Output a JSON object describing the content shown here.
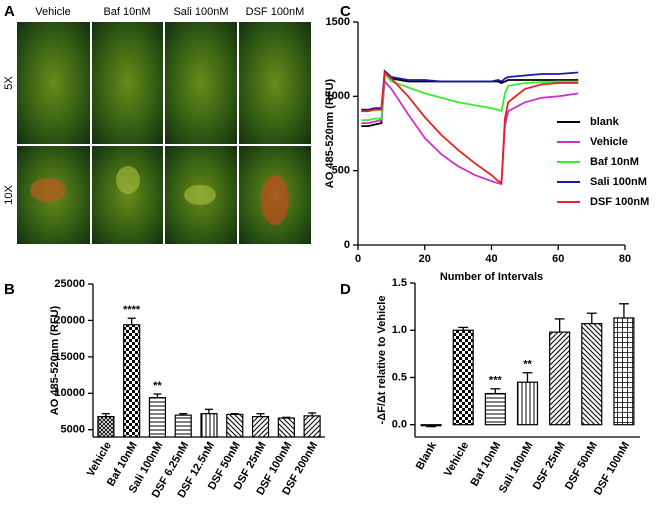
{
  "image_panel": {
    "label": "A",
    "columns": [
      "Vehicle",
      "Baf 10nM",
      "Sali 100nM",
      "DSF 100nM"
    ],
    "rows": [
      "5X",
      "10X"
    ]
  },
  "chart_data": [
    {
      "type": "bar",
      "label": "B",
      "ylabel": "AO 485-520nm (RFU)",
      "categories": [
        "Vehicle",
        "Baf 10nM",
        "Sali 100nM",
        "DSF 6.25nM",
        "DSF 12.5nM",
        "DSF 50nM",
        "DSF 25nM",
        "DSF 100nM",
        "DSF 200nM"
      ],
      "values": [
        6800,
        19400,
        9400,
        7000,
        7200,
        7100,
        6800,
        6600,
        6900
      ],
      "errors": [
        400,
        900,
        500,
        200,
        600,
        100,
        400,
        100,
        400
      ],
      "value_annotations": [
        null,
        "****",
        "**",
        null,
        null,
        null,
        null,
        null,
        null
      ],
      "patterns": [
        "crosshatch",
        "checker",
        "hlines",
        "hlines",
        "vlines",
        "bdiag",
        "diag",
        "bdiag",
        "diag"
      ],
      "color": "#000000",
      "ylim": [
        4000,
        25000
      ],
      "yticks": [
        5000,
        10000,
        15000,
        20000,
        25000
      ]
    },
    {
      "type": "line",
      "label": "C",
      "ylabel": "AO 485-520nm (RFU)",
      "xlabel": "Number of Intervals",
      "x": [
        1,
        3,
        5,
        7,
        8,
        10,
        15,
        20,
        25,
        30,
        35,
        40,
        42,
        43,
        44,
        45,
        50,
        55,
        60,
        66
      ],
      "series": [
        {
          "name": "blank",
          "color": "#000000",
          "values": [
            800,
            800,
            810,
            820,
            1150,
            1120,
            1100,
            1100,
            1100,
            1100,
            1100,
            1100,
            1100,
            1090,
            1100,
            1110,
            1110,
            1110,
            1110,
            1110
          ]
        },
        {
          "name": "Vehicle",
          "color": "#cc33cc",
          "values": [
            820,
            820,
            830,
            840,
            1100,
            1050,
            880,
            720,
            610,
            530,
            470,
            430,
            415,
            410,
            800,
            900,
            960,
            990,
            1000,
            1020
          ]
        },
        {
          "name": "Baf 10nM",
          "color": "#33ee33",
          "values": [
            840,
            840,
            850,
            850,
            1150,
            1100,
            1060,
            1020,
            990,
            960,
            940,
            920,
            910,
            900,
            1020,
            1070,
            1090,
            1095,
            1100,
            1100
          ]
        },
        {
          "name": "Sali 100nM",
          "color": "#1a1aa6",
          "values": [
            910,
            910,
            920,
            920,
            1170,
            1130,
            1110,
            1110,
            1100,
            1100,
            1100,
            1100,
            1110,
            1100,
            1120,
            1130,
            1140,
            1150,
            1150,
            1160
          ]
        },
        {
          "name": "DSF 100nM",
          "color": "#e62222",
          "values": [
            900,
            900,
            910,
            910,
            1160,
            1120,
            1000,
            860,
            740,
            640,
            550,
            470,
            430,
            420,
            850,
            960,
            1050,
            1080,
            1090,
            1090
          ]
        }
      ],
      "xlim": [
        0,
        80
      ],
      "xticks": [
        0,
        20,
        40,
        60,
        80
      ],
      "ylim": [
        0,
        1500
      ],
      "yticks": [
        0,
        500,
        1000,
        1500
      ],
      "legend": "right"
    },
    {
      "type": "bar",
      "label": "D",
      "ylabel": "-ΔF/Δt relative to Vehicle",
      "categories": [
        "Blank",
        "Vehicle",
        "Baf 10nM",
        "Sali 100nM",
        "DSF 25nM",
        "DSF 50nM",
        "DSF 100nM"
      ],
      "values": [
        -0.01,
        1.0,
        0.33,
        0.45,
        0.98,
        1.07,
        1.13
      ],
      "errors": [
        0.01,
        0.03,
        0.05,
        0.1,
        0.14,
        0.11,
        0.15
      ],
      "value_annotations": [
        null,
        null,
        "***",
        "**",
        null,
        null,
        null
      ],
      "patterns": [
        "white",
        "checker",
        "hlines",
        "vlines",
        "diag",
        "bdiag",
        "grid"
      ],
      "color": "#000000",
      "ylim": [
        -0.13,
        1.5
      ],
      "yticks": [
        {
          "value": 0,
          "label": "0.0"
        },
        {
          "value": 0.5,
          "label": "0.5"
        },
        {
          "value": 1,
          "label": "1.0"
        },
        {
          "value": 1.5,
          "label": "1.5"
        }
      ]
    }
  ]
}
